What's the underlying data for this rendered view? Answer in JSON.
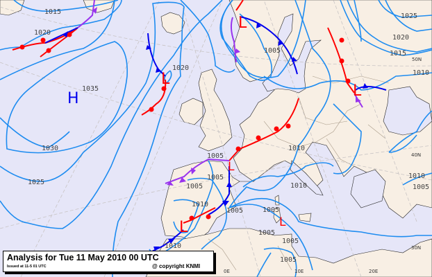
{
  "header": {
    "title": "Analysis for Tue 11 May 2010 00 UTC",
    "issued": "Issued at 11-5 01 UTC",
    "copyright": "@ copyright KNMI"
  },
  "colors": {
    "sea": "#e6e6f8",
    "land": "#f8efe4",
    "isobar": "#1e8cf0",
    "warm_front": "#ff0000",
    "cold_front": "#0000ee",
    "occluded_front": "#9933ee",
    "high": "#0000ee",
    "low": "#ff0000"
  },
  "pressure_centers": [
    {
      "type": "H",
      "label": "H"
    },
    {
      "type": "L",
      "label": "L",
      "where": "west of Ireland"
    },
    {
      "type": "L",
      "label": "L",
      "where": "Norway"
    },
    {
      "type": "L",
      "label": "L",
      "where": "Ukraine"
    },
    {
      "type": "L",
      "label": "L",
      "where": "Biscay"
    },
    {
      "type": "L",
      "label": "L",
      "where": "Iberia"
    },
    {
      "type": "L",
      "label": "L",
      "where": "Sardinia"
    }
  ],
  "isobar_labels": [
    "1015",
    "1020",
    "1035",
    "1030",
    "1025",
    "1020",
    "1005",
    "1025",
    "1020",
    "1015",
    "1010",
    "1005",
    "1005",
    "1005",
    "1010",
    "1010",
    "1010",
    "1010",
    "1010",
    "1005",
    "1005",
    "1005",
    "1005",
    "1005",
    "1005"
  ],
  "coordinate_labels": [
    "50N",
    "40N",
    "30N",
    "0E",
    "10E",
    "20E"
  ]
}
